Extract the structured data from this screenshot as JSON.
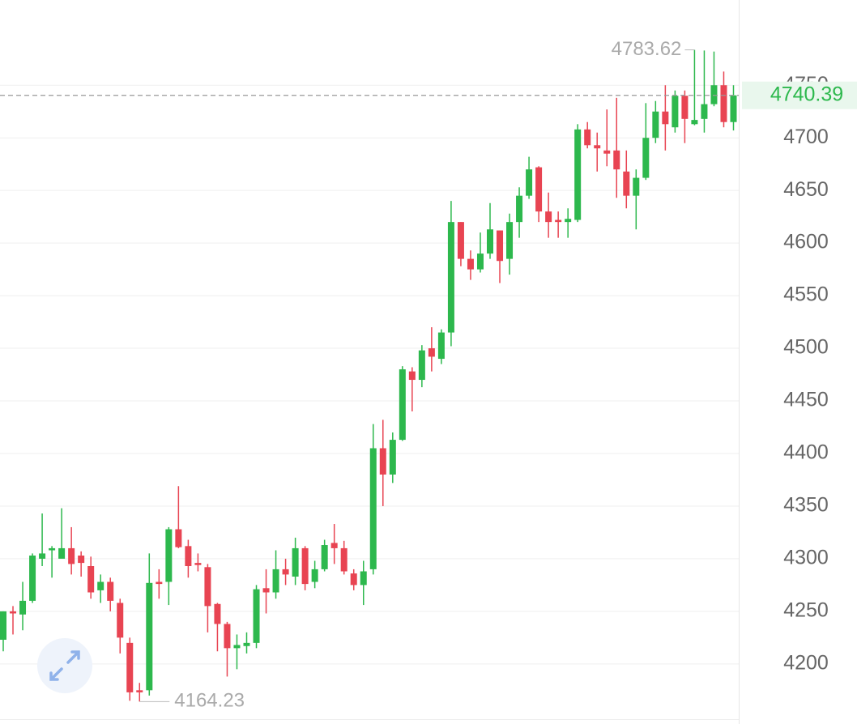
{
  "chart_data": {
    "type": "candlestick",
    "up_color": "#2db84d",
    "down_color": "#e84452",
    "ylim": [
      4146,
      4831
    ],
    "yticks": [
      4200,
      4250,
      4300,
      4350,
      4400,
      4450,
      4500,
      4550,
      4600,
      4650,
      4700,
      4750
    ],
    "grid": true,
    "open": [
      4223,
      4250,
      4247,
      4260,
      4300,
      4308,
      4300,
      4310,
      4303,
      4293,
      4270,
      4278,
      4258,
      4220,
      4175,
      4175,
      4278,
      4278,
      4328,
      4312,
      4296,
      4292,
      4257,
      4238,
      4215,
      4217,
      4220,
      4272,
      4268,
      4290,
      4283,
      4310,
      4278,
      4290,
      4315,
      4310,
      4286,
      4275,
      4290,
      4405,
      4380,
      4413,
      4478,
      4470,
      4500,
      4490,
      4515,
      4620,
      4585,
      4575,
      4590,
      4612,
      4585,
      4620,
      4645,
      4672,
      4630,
      4622,
      4620,
      4622,
      4708,
      4693,
      4688,
      4688,
      4668,
      4645,
      4662,
      4700,
      4725,
      4710,
      4740,
      4713,
      4718,
      4732,
      4750,
      4715
    ],
    "high": [
      4250,
      4255,
      4278,
      4305,
      4343,
      4312,
      4348,
      4330,
      4307,
      4302,
      4285,
      4282,
      4262,
      4225,
      4182,
      4305,
      4290,
      4330,
      4369,
      4318,
      4305,
      4295,
      4258,
      4240,
      4228,
      4230,
      4275,
      4290,
      4308,
      4300,
      4320,
      4312,
      4298,
      4318,
      4333,
      4317,
      4290,
      4298,
      4428,
      4432,
      4420,
      4483,
      4482,
      4503,
      4520,
      4518,
      4640,
      4620,
      4593,
      4610,
      4638,
      4612,
      4628,
      4653,
      4682,
      4673,
      4648,
      4630,
      4633,
      4713,
      4715,
      4705,
      4727,
      4738,
      4688,
      4670,
      4733,
      4735,
      4750,
      4745,
      4745,
      4783.62,
      4783,
      4782,
      4763,
      4750
    ],
    "low": [
      4212,
      4228,
      4232,
      4258,
      4293,
      4282,
      4303,
      4285,
      4283,
      4262,
      4258,
      4250,
      4210,
      4165,
      4164.23,
      4170,
      4262,
      4256,
      4310,
      4282,
      4288,
      4230,
      4212,
      4188,
      4195,
      4210,
      4215,
      4248,
      4262,
      4275,
      4275,
      4270,
      4272,
      4288,
      4295,
      4285,
      4270,
      4256,
      4285,
      4350,
      4372,
      4412,
      4440,
      4463,
      4478,
      4485,
      4502,
      4578,
      4565,
      4572,
      4585,
      4562,
      4570,
      4605,
      4642,
      4620,
      4605,
      4605,
      4605,
      4620,
      4690,
      4668,
      4673,
      4643,
      4633,
      4613,
      4660,
      4695,
      4688,
      4705,
      4695,
      4712,
      4705,
      4730,
      4710,
      4707
    ],
    "close": [
      4250,
      4248,
      4260,
      4303,
      4305,
      4310,
      4310,
      4295,
      4296,
      4268,
      4278,
      4260,
      4225,
      4173,
      4173,
      4277,
      4276,
      4328,
      4311,
      4293,
      4294,
      4255,
      4238,
      4215,
      4218,
      4220,
      4271,
      4268,
      4290,
      4285,
      4310,
      4276,
      4290,
      4313,
      4310,
      4288,
      4275,
      4288,
      4405,
      4380,
      4413,
      4480,
      4470,
      4498,
      4492,
      4515,
      4620,
      4585,
      4575,
      4590,
      4613,
      4583,
      4620,
      4645,
      4670,
      4630,
      4620,
      4620,
      4623,
      4708,
      4693,
      4690,
      4685,
      4670,
      4645,
      4662,
      4700,
      4725,
      4713,
      4740,
      4718,
      4717,
      4732,
      4750,
      4715,
      4740.39
    ]
  }
}
